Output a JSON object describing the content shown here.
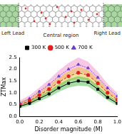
{
  "diagram": {
    "left_lead": "Left Lead",
    "central_region": "Central region",
    "right_lead": "Right Lead"
  },
  "chart_data": {
    "type": "line",
    "x_label": "Disorder magnitude (M)",
    "y_label": "ZTMax",
    "x": [
      0.0,
      0.1,
      0.2,
      0.3,
      0.4,
      0.5,
      0.6,
      0.7,
      0.8,
      0.9,
      1.0
    ],
    "series": [
      {
        "name": "300 K",
        "color": "#000000",
        "marker": "square",
        "line_style": "solid",
        "values": [
          0.42,
          0.55,
          0.75,
          0.95,
          1.2,
          1.4,
          1.5,
          1.45,
          1.15,
          0.8,
          0.55
        ],
        "error": [
          0.08,
          0.1,
          0.12,
          0.14,
          0.16,
          0.18,
          0.2,
          0.18,
          0.16,
          0.12,
          0.1
        ]
      },
      {
        "name": "500 K",
        "color": "#e02020",
        "marker": "circle",
        "line_style": "dashed",
        "values": [
          0.5,
          0.65,
          0.9,
          1.15,
          1.45,
          1.7,
          1.85,
          1.75,
          1.4,
          1.0,
          0.7
        ],
        "error": [
          0.1,
          0.12,
          0.14,
          0.16,
          0.2,
          0.22,
          0.24,
          0.22,
          0.2,
          0.15,
          0.12
        ]
      },
      {
        "name": "700 K",
        "color": "#6a3fc8",
        "marker": "triangle",
        "line_style": "dotted",
        "values": [
          0.55,
          0.75,
          1.05,
          1.35,
          1.7,
          2.0,
          2.2,
          2.05,
          1.65,
          1.2,
          0.85
        ],
        "error": [
          0.12,
          0.14,
          0.17,
          0.2,
          0.24,
          0.27,
          0.3,
          0.27,
          0.24,
          0.18,
          0.14
        ]
      }
    ],
    "xlim": [
      0,
      1
    ],
    "xticks": [
      {
        "value": 0,
        "label": "0.0"
      },
      {
        "value": 0.2,
        "label": "0.2"
      },
      {
        "value": 0.4,
        "label": "0.4"
      },
      {
        "value": 0.6,
        "label": "0.6"
      },
      {
        "value": 0.8,
        "label": "0.8"
      },
      {
        "value": 1,
        "label": "1.0"
      }
    ],
    "ylim": [
      0,
      2.5
    ],
    "yticks": [
      {
        "value": 0,
        "label": "0.0"
      },
      {
        "value": 0.5,
        "label": "0.5"
      },
      {
        "value": 1,
        "label": "1.0"
      },
      {
        "value": 1.5,
        "label": "1.5"
      },
      {
        "value": 2,
        "label": "2.0"
      },
      {
        "value": 2.5,
        "label": "2.5"
      }
    ],
    "legend": "top",
    "grid": false
  }
}
